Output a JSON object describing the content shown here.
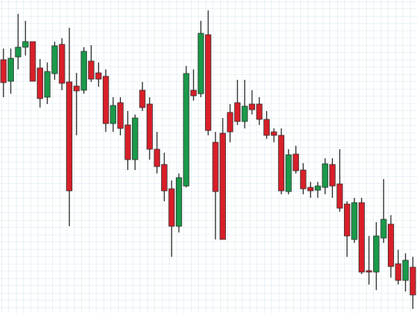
{
  "chart_data": {
    "type": "candlestick",
    "open": [
      365,
      334,
      369,
      383,
      391,
      353,
      311,
      345,
      387,
      333,
      327,
      321,
      363,
      346,
      341,
      273,
      303,
      271,
      221,
      321,
      301,
      236,
      214,
      179,
      125,
      183,
      321,
      316,
      401,
      246,
      259,
      289,
      303,
      276,
      301,
      301,
      279,
      261,
      256,
      175,
      229,
      206,
      181,
      177,
      181,
      214,
      186,
      157,
      106,
      159,
      61,
      59,
      108,
      128,
      71,
      47,
      66
    ],
    "high": [
      381,
      381,
      431,
      421,
      391,
      366,
      361,
      391,
      396,
      411,
      346,
      383,
      386,
      361,
      351,
      311,
      311,
      291,
      286,
      333,
      311,
      261,
      231,
      191,
      201,
      356,
      351,
      421,
      436,
      261,
      281,
      301,
      336,
      336,
      321,
      311,
      291,
      266,
      266,
      236,
      241,
      216,
      189,
      189,
      223,
      223,
      236,
      161,
      166,
      166,
      111,
      131,
      193,
      141,
      91,
      86,
      81
    ],
    "low": [
      311,
      316,
      351,
      371,
      334,
      296,
      301,
      336,
      321,
      125,
      256,
      316,
      333,
      326,
      261,
      261,
      256,
      206,
      206,
      291,
      221,
      201,
      161,
      81,
      116,
      181,
      306,
      311,
      256,
      106,
      106,
      246,
      271,
      266,
      286,
      271,
      251,
      246,
      171,
      171,
      201,
      171,
      166,
      166,
      171,
      166,
      146,
      81,
      101,
      56,
      41,
      33,
      101,
      51,
      41,
      31,
      6
    ],
    "close": [
      332,
      367,
      383,
      391,
      334,
      309,
      348,
      385,
      331,
      176,
      320,
      377,
      337,
      337,
      273,
      299,
      266,
      221,
      281,
      296,
      236,
      211,
      176,
      125,
      195,
      345,
      313,
      403,
      263,
      175,
      106,
      261,
      276,
      298,
      293,
      279,
      256,
      256,
      176,
      228,
      205,
      179,
      176,
      183,
      215,
      183,
      151,
      111,
      159,
      59,
      59,
      111,
      135,
      67,
      47,
      76,
      26
    ],
    "up_color": "#1a9a4a",
    "down_color": "#d9202a",
    "ylim": [
      0,
      451
    ],
    "grid": true
  }
}
